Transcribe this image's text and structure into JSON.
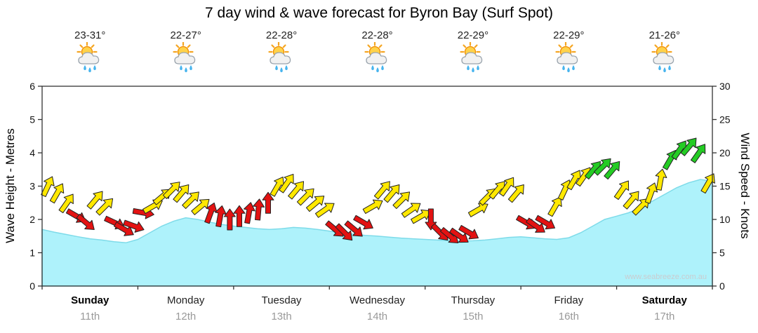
{
  "title": "7 day wind & wave forecast for Byron Bay (Surf Spot)",
  "watermark": "www.seabreeze.com.au",
  "days": [
    {
      "name": "Sunday",
      "date": "11th",
      "temp_range": "23-31°",
      "icon": "sun-cloud-rain",
      "weekend": true
    },
    {
      "name": "Monday",
      "date": "12th",
      "temp_range": "22-27°",
      "icon": "sun-cloud-rain",
      "weekend": false
    },
    {
      "name": "Tuesday",
      "date": "13th",
      "temp_range": "22-28°",
      "icon": "sun-cloud-rain",
      "weekend": false
    },
    {
      "name": "Wednesday",
      "date": "14th",
      "temp_range": "22-28°",
      "icon": "sun-cloud-rain",
      "weekend": false
    },
    {
      "name": "Thursday",
      "date": "15th",
      "temp_range": "22-29°",
      "icon": "sun-cloud-rain",
      "weekend": false
    },
    {
      "name": "Friday",
      "date": "16th",
      "temp_range": "22-29°",
      "icon": "sun-cloud-rain",
      "weekend": false
    },
    {
      "name": "Saturday",
      "date": "17th",
      "temp_range": "21-26°",
      "icon": "sun-cloud-rain",
      "weekend": true
    }
  ],
  "chart_data": {
    "type": "area",
    "x_unit": "days",
    "x_range": [
      0,
      7
    ],
    "left_axis": {
      "label": "Wave Height - Metres",
      "min": 0,
      "max": 6,
      "tick_step": 1
    },
    "right_axis": {
      "label": "Wind Speed - Knots",
      "min": 0,
      "max": 30,
      "tick_step": 5
    },
    "grid": false,
    "wave_height_m": {
      "x_start": 0,
      "x_step": 0.125,
      "values": [
        1.7,
        1.62,
        1.55,
        1.48,
        1.42,
        1.38,
        1.33,
        1.3,
        1.4,
        1.6,
        1.8,
        1.95,
        2.05,
        2.0,
        1.92,
        1.85,
        1.8,
        1.76,
        1.72,
        1.7,
        1.72,
        1.76,
        1.74,
        1.7,
        1.65,
        1.6,
        1.56,
        1.52,
        1.5,
        1.47,
        1.44,
        1.42,
        1.4,
        1.38,
        1.36,
        1.35,
        1.36,
        1.38,
        1.42,
        1.46,
        1.48,
        1.45,
        1.42,
        1.4,
        1.45,
        1.6,
        1.8,
        2.0,
        2.1,
        2.2,
        2.35,
        2.55,
        2.75,
        2.95,
        3.1,
        3.2,
        3.15
      ]
    },
    "wind_arrows_format": [
      "time_days",
      "knots",
      "color",
      "direction_deg"
    ],
    "wind_arrows": [
      [
        0.06,
        15,
        "yellow",
        25
      ],
      [
        0.16,
        14,
        "yellow",
        30
      ],
      [
        0.26,
        12.5,
        "yellow",
        35
      ],
      [
        0.36,
        10.5,
        "red",
        120
      ],
      [
        0.46,
        9.5,
        "red",
        130
      ],
      [
        0.56,
        13,
        "yellow",
        40
      ],
      [
        0.66,
        12,
        "yellow",
        45
      ],
      [
        0.76,
        9.5,
        "red",
        115
      ],
      [
        0.86,
        8.5,
        "red",
        120
      ],
      [
        0.96,
        9,
        "red",
        110
      ],
      [
        1.06,
        11,
        "red",
        100
      ],
      [
        1.16,
        12,
        "yellow",
        60
      ],
      [
        1.26,
        13.5,
        "yellow",
        50
      ],
      [
        1.36,
        14.5,
        "yellow",
        45
      ],
      [
        1.46,
        14,
        "yellow",
        40
      ],
      [
        1.56,
        13,
        "yellow",
        45
      ],
      [
        1.66,
        12,
        "yellow",
        50
      ],
      [
        1.76,
        11,
        "red",
        20
      ],
      [
        1.86,
        10.5,
        "red",
        10
      ],
      [
        1.96,
        10,
        "red",
        0
      ],
      [
        2.06,
        10.5,
        "red",
        0
      ],
      [
        2.16,
        11,
        "red",
        10
      ],
      [
        2.26,
        11.5,
        "red",
        5
      ],
      [
        2.36,
        12.5,
        "red",
        0
      ],
      [
        2.46,
        15,
        "yellow",
        30
      ],
      [
        2.56,
        15.5,
        "yellow",
        35
      ],
      [
        2.66,
        14.5,
        "yellow",
        40
      ],
      [
        2.76,
        13.5,
        "yellow",
        45
      ],
      [
        2.86,
        12.5,
        "yellow",
        50
      ],
      [
        2.96,
        11.5,
        "yellow",
        55
      ],
      [
        3.06,
        8.5,
        "red",
        130
      ],
      [
        3.16,
        8,
        "red",
        135
      ],
      [
        3.26,
        8.5,
        "red",
        130
      ],
      [
        3.36,
        9.5,
        "red",
        120
      ],
      [
        3.46,
        12,
        "yellow",
        60
      ],
      [
        3.56,
        14.5,
        "yellow",
        40
      ],
      [
        3.66,
        14,
        "yellow",
        40
      ],
      [
        3.76,
        13,
        "yellow",
        45
      ],
      [
        3.86,
        11.5,
        "yellow",
        55
      ],
      [
        3.96,
        10.5,
        "yellow",
        60
      ],
      [
        4.06,
        10,
        "red",
        180
      ],
      [
        4.16,
        8,
        "red",
        135
      ],
      [
        4.26,
        7.5,
        "red",
        130
      ],
      [
        4.36,
        7.5,
        "red",
        125
      ],
      [
        4.46,
        8,
        "red",
        120
      ],
      [
        4.56,
        11.5,
        "yellow",
        60
      ],
      [
        4.66,
        13.5,
        "yellow",
        45
      ],
      [
        4.76,
        14.5,
        "yellow",
        40
      ],
      [
        4.86,
        15,
        "yellow",
        35
      ],
      [
        4.96,
        14,
        "yellow",
        40
      ],
      [
        5.06,
        9.5,
        "red",
        120
      ],
      [
        5.16,
        9,
        "red",
        125
      ],
      [
        5.26,
        9.5,
        "red",
        120
      ],
      [
        5.36,
        12,
        "yellow",
        30
      ],
      [
        5.46,
        14.5,
        "yellow",
        25
      ],
      [
        5.56,
        16,
        "yellow",
        30
      ],
      [
        5.66,
        16.5,
        "yellow",
        35
      ],
      [
        5.76,
        17.5,
        "green",
        40
      ],
      [
        5.86,
        18,
        "green",
        45
      ],
      [
        5.96,
        17.5,
        "green",
        40
      ],
      [
        6.06,
        14.5,
        "yellow",
        35
      ],
      [
        6.16,
        13,
        "yellow",
        40
      ],
      [
        6.26,
        12,
        "yellow",
        45
      ],
      [
        6.36,
        14,
        "yellow",
        20
      ],
      [
        6.46,
        16,
        "yellow",
        10
      ],
      [
        6.56,
        19,
        "green",
        30
      ],
      [
        6.66,
        20.5,
        "green",
        35
      ],
      [
        6.76,
        21,
        "green",
        40
      ],
      [
        6.86,
        20,
        "green",
        35
      ],
      [
        6.96,
        15.5,
        "yellow",
        30
      ]
    ],
    "colors": {
      "wave_fill": "#aef2fb",
      "wave_line": "#7edbe9",
      "yellow": "#ffe800",
      "red": "#e31212",
      "green": "#24cc24",
      "axis": "#333333",
      "watermark": "#c9ccd0"
    }
  }
}
